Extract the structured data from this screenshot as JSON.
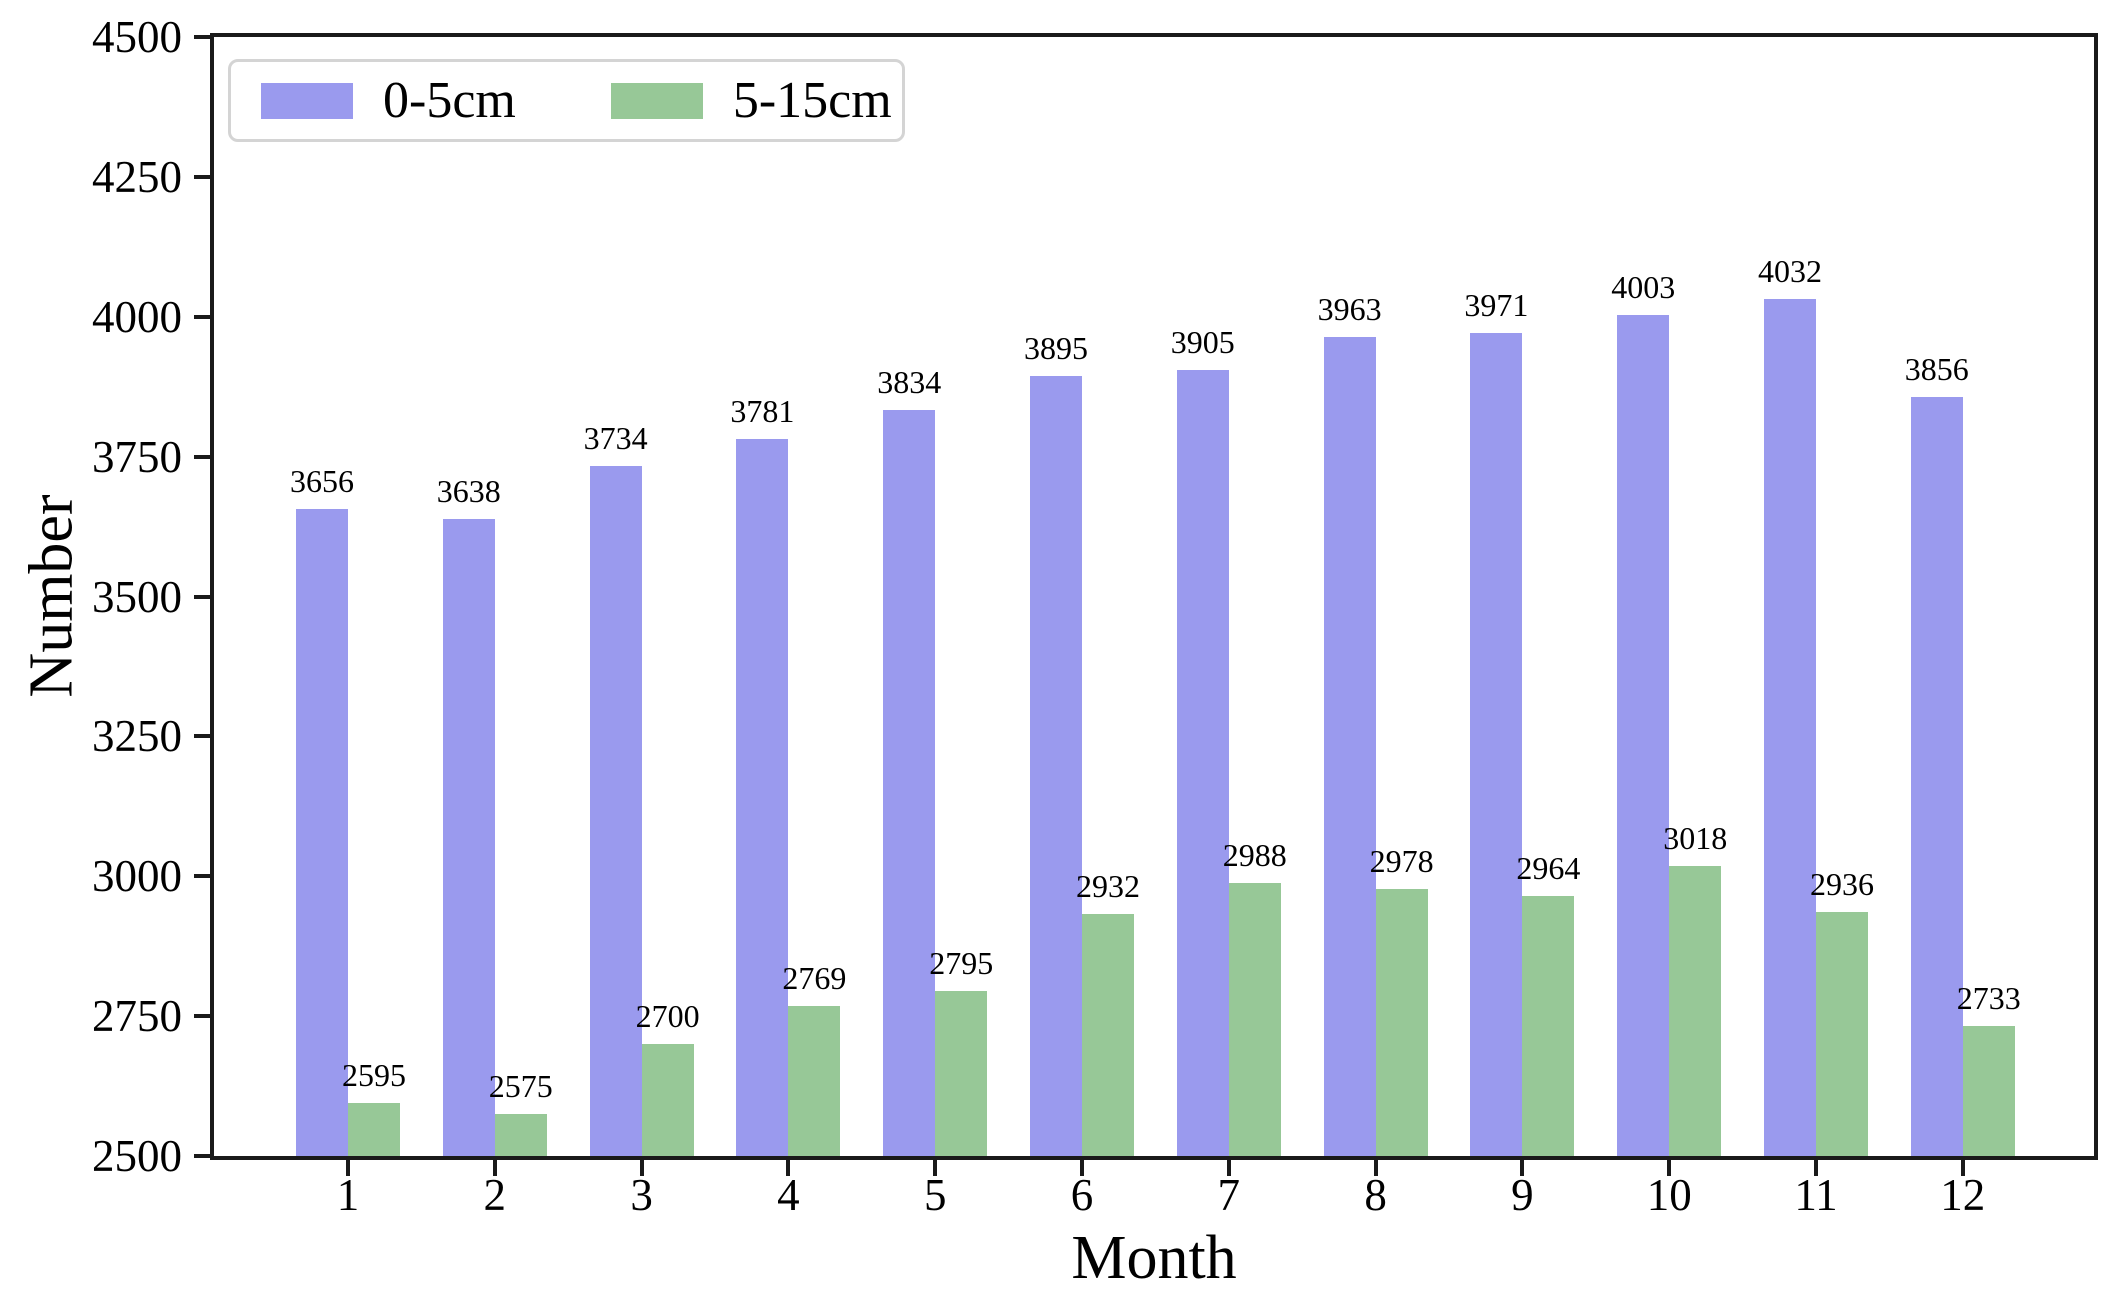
{
  "chart_data": {
    "type": "bar",
    "title": "",
    "xlabel": "Month",
    "ylabel": "Number",
    "categories": [
      "1",
      "2",
      "3",
      "4",
      "5",
      "6",
      "7",
      "8",
      "9",
      "10",
      "11",
      "12"
    ],
    "series": [
      {
        "name": "0-5cm",
        "color": "#9a9aee",
        "values": [
          3656,
          3638,
          3734,
          3781,
          3834,
          3895,
          3905,
          3963,
          3971,
          4003,
          4032,
          3856
        ]
      },
      {
        "name": "5-15cm",
        "color": "#97c897",
        "values": [
          2595,
          2575,
          2700,
          2769,
          2795,
          2932,
          2988,
          2978,
          2964,
          3018,
          2936,
          2733
        ]
      }
    ],
    "ylim": [
      2500,
      4500
    ],
    "yticks": [
      2500,
      2750,
      3000,
      3250,
      3500,
      3750,
      4000,
      4250,
      4500
    ],
    "grid": false,
    "legend_position": "upper-left",
    "bar_labels_shown": true,
    "axis_color": "#1a1a1a",
    "background": "#ffffff"
  }
}
